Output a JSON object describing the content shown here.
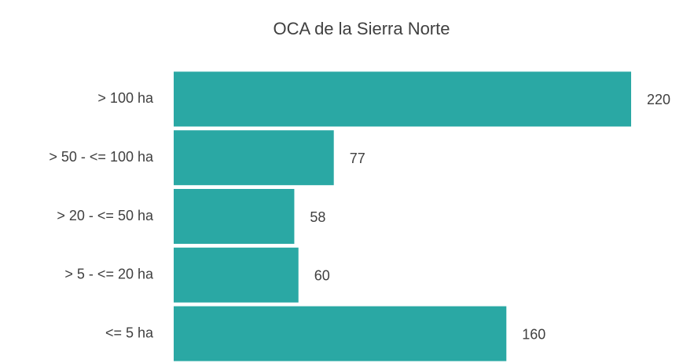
{
  "chart_data": {
    "type": "bar",
    "orientation": "horizontal",
    "title": "OCA de la Sierra Norte",
    "categories": [
      "> 100 ha",
      "> 50 - <= 100 ha",
      "> 20 - <= 50 ha",
      "> 5 - <= 20 ha",
      "<= 5 ha"
    ],
    "values": [
      220,
      77,
      58,
      60,
      160
    ],
    "color": "#2aa8a4"
  }
}
